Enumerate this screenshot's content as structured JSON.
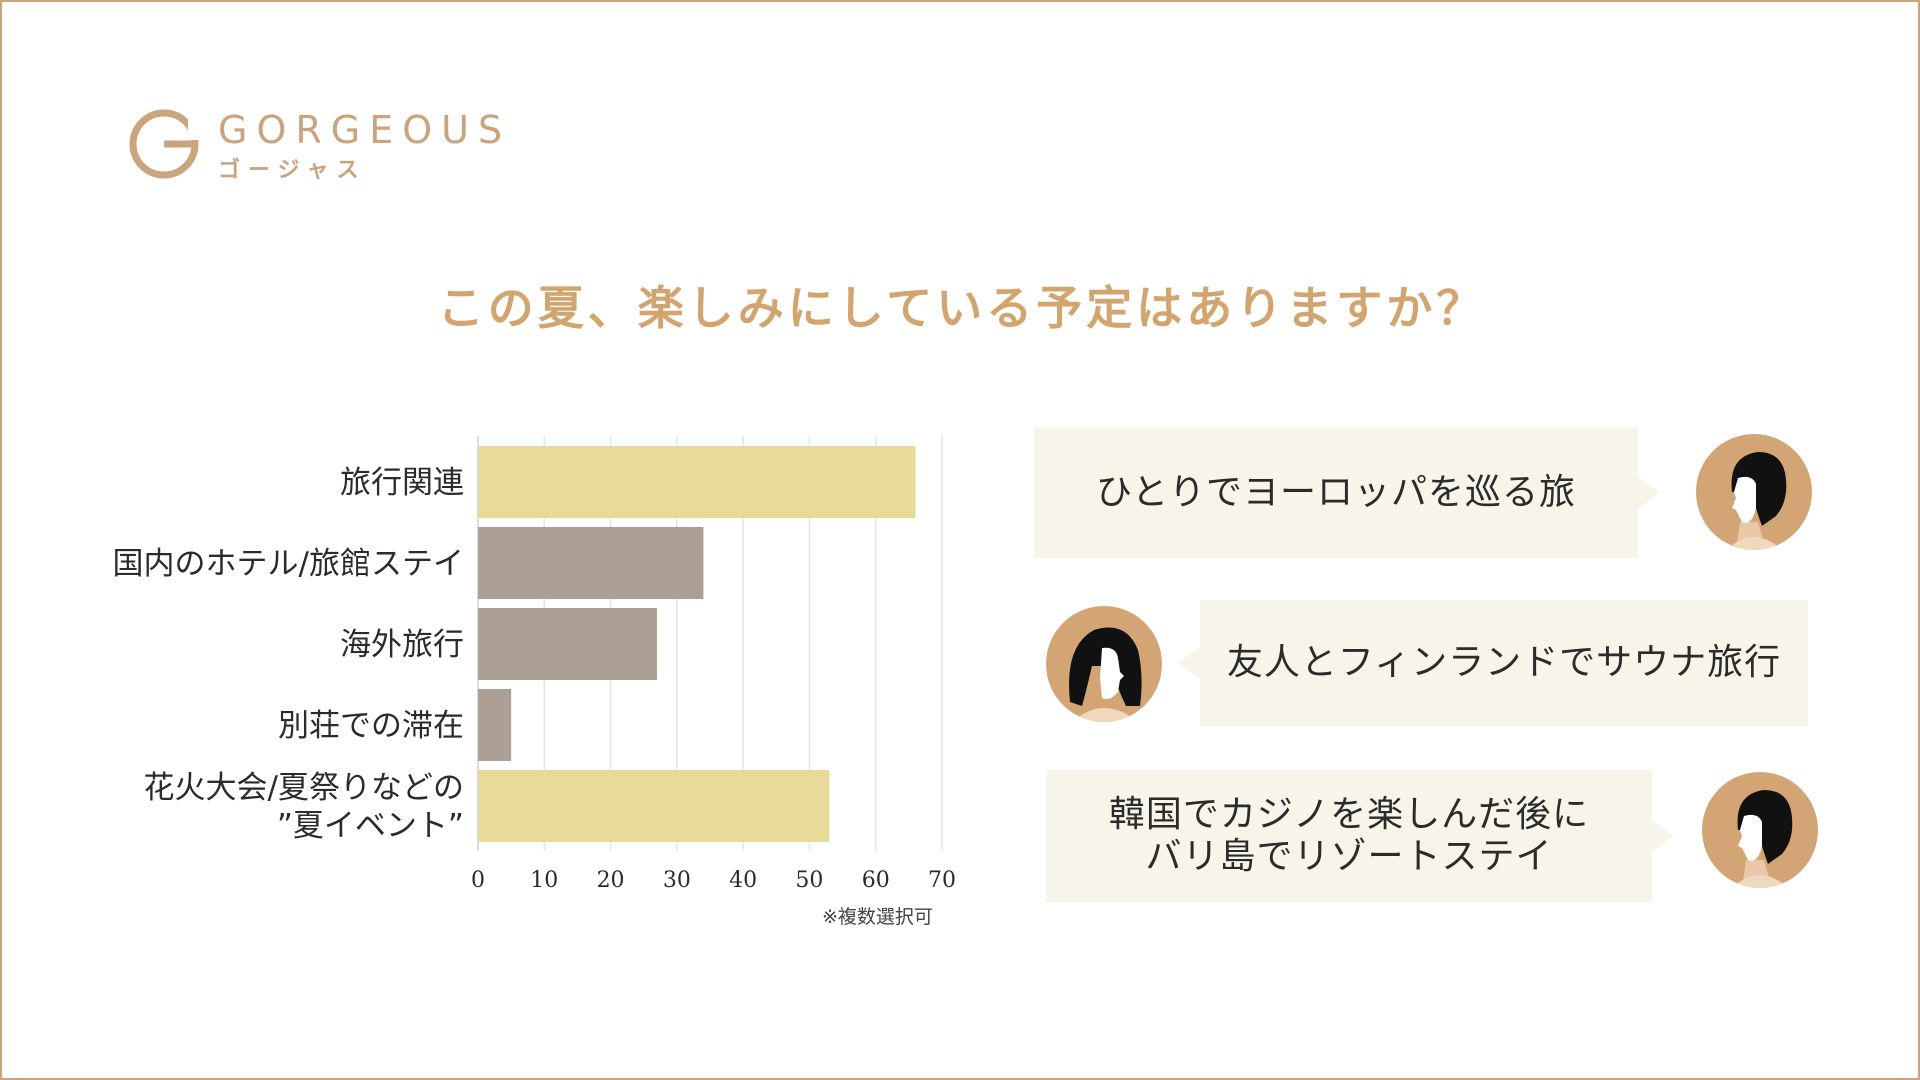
{
  "brand": {
    "name": "GORGEOUS",
    "kana": "ゴージャス",
    "color": "#c9a47c"
  },
  "title": "この夏、楽しみにしている予定はありますか？",
  "chart_data": {
    "type": "bar",
    "orientation": "horizontal",
    "categories": [
      "旅行関連",
      "国内のホテル/旅館ステイ",
      "海外旅行",
      "別荘での滞在",
      "花火大会/夏祭りなどの\n”夏イベント”"
    ],
    "values": [
      66,
      34,
      27,
      5,
      53
    ],
    "colors": [
      "#e8db9a",
      "#ab9f96",
      "#ab9f96",
      "#ab9f96",
      "#e8db9a"
    ],
    "xlim": [
      0,
      70
    ],
    "xticks": [
      0,
      10,
      20,
      30,
      40,
      50,
      60,
      70
    ],
    "grid": true,
    "title": "",
    "xlabel": "",
    "ylabel": ""
  },
  "chart_note": "※複数選択可",
  "comments": [
    {
      "text": "ひとりでヨーロッパを巡る旅",
      "avatar": "man-profile-icon",
      "side": "right"
    },
    {
      "text": "友人とフィンランドでサウナ旅行",
      "avatar": "woman-profile-icon",
      "side": "left"
    },
    {
      "text": "韓国でカジノを楽しんだ後に\nバリ島でリゾートステイ",
      "avatar": "man-profile-icon",
      "side": "right"
    }
  ]
}
